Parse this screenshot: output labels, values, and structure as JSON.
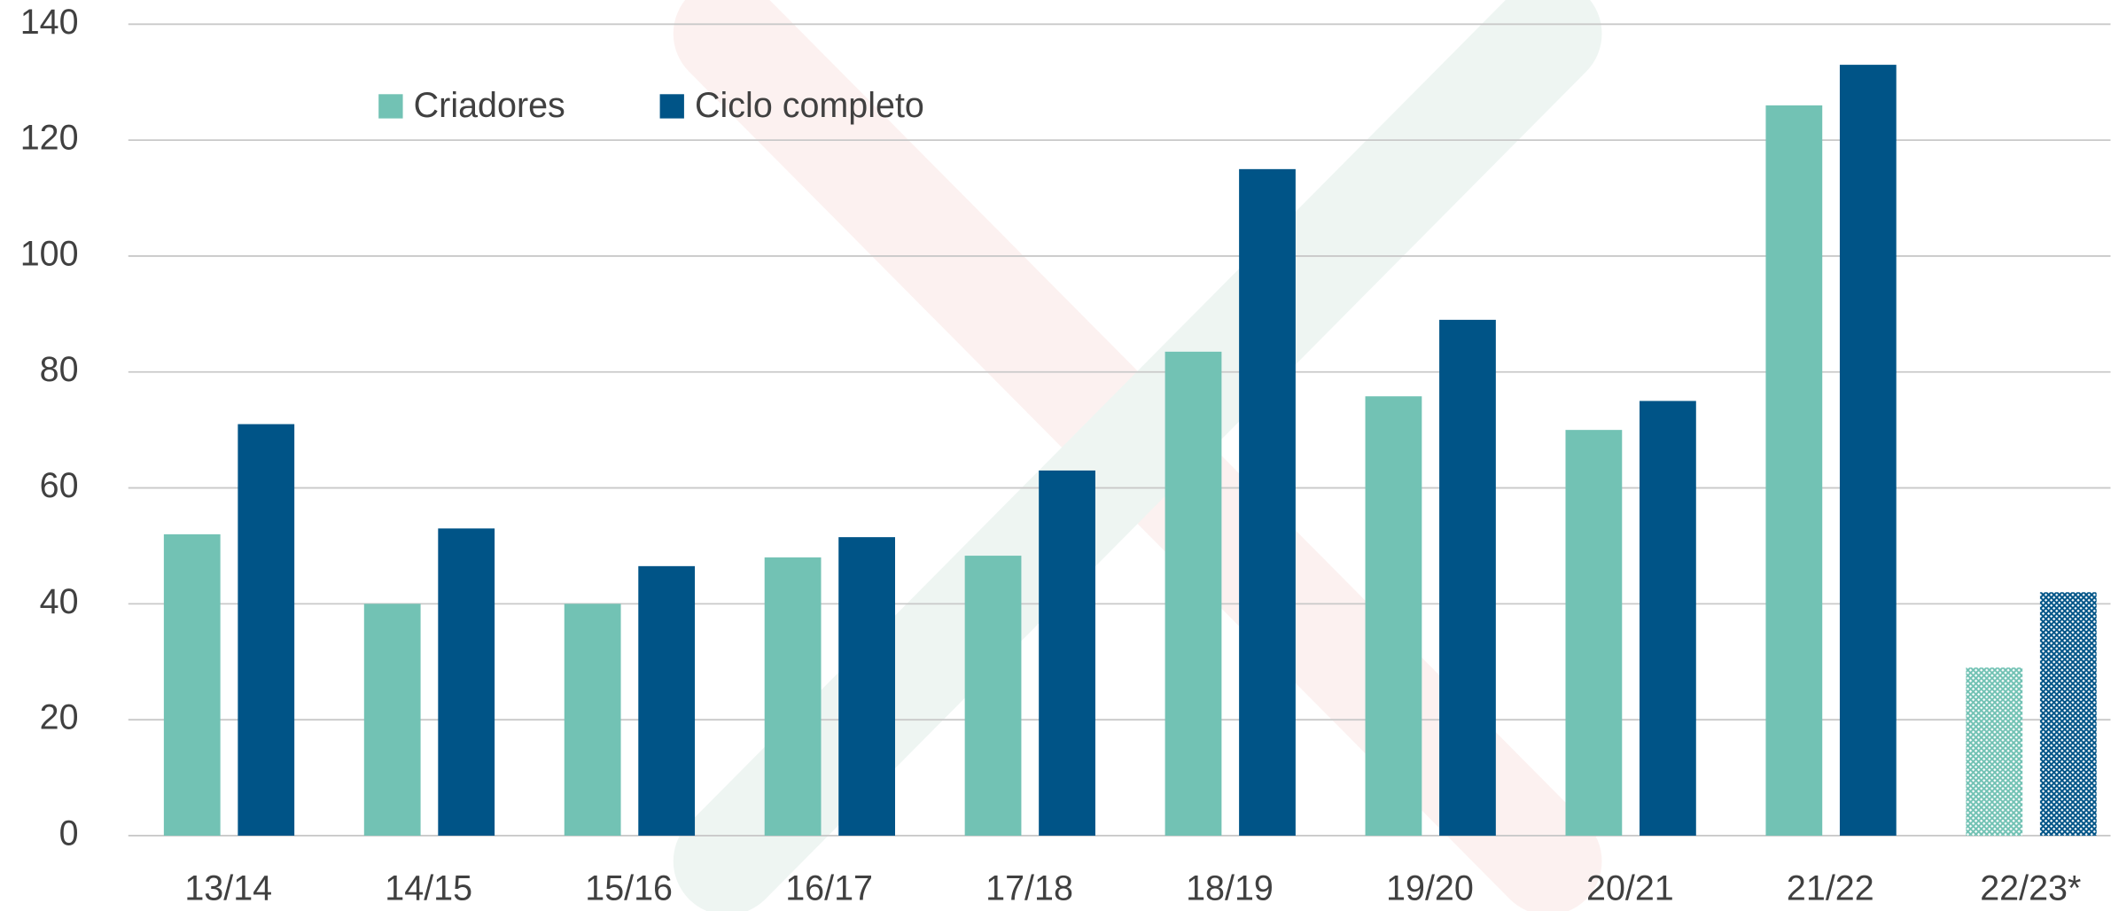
{
  "chart_data": {
    "type": "bar",
    "categories": [
      "13/14",
      "14/15",
      "15/16",
      "16/17",
      "17/18",
      "18/19",
      "19/20",
      "20/21",
      "21/22",
      "22/23*"
    ],
    "series": [
      {
        "name": "Criadores",
        "color": "#72c2b4",
        "values": [
          52,
          40,
          40,
          48,
          48.3,
          83.5,
          75.8,
          70,
          126,
          29
        ]
      },
      {
        "name": "Ciclo completo",
        "color": "#005487",
        "values": [
          71,
          53,
          46.5,
          51.5,
          63,
          115,
          89,
          75,
          133,
          42
        ]
      }
    ],
    "hatched": [
      false,
      false,
      false,
      false,
      false,
      false,
      false,
      false,
      false,
      true
    ],
    "ylim": [
      0,
      140
    ],
    "yticks": [
      0,
      20,
      40,
      60,
      80,
      100,
      120,
      140
    ],
    "grid": true,
    "legend": "top-left"
  }
}
